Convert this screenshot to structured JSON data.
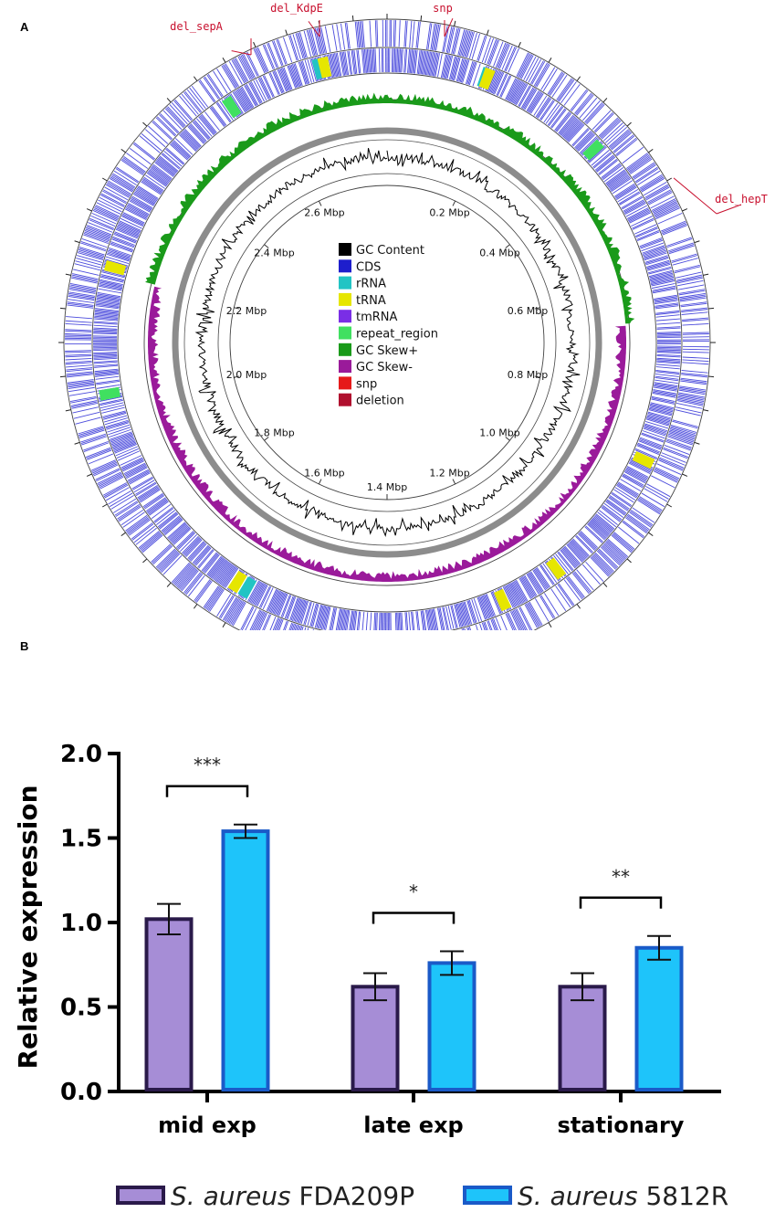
{
  "panel_a": {
    "label": "A",
    "ticks": [
      "0.2 Mbp",
      "0.4 Mbp",
      "0.6 Mbp",
      "0.8 Mbp",
      "1.0 Mbp",
      "1.2 Mbp",
      "1.4 Mbp",
      "1.6 Mbp",
      "1.8 Mbp",
      "2.0 Mbp",
      "2.2 Mbp",
      "2.4 Mbp",
      "2.6 Mbp"
    ],
    "annotations": [
      "del_sepA",
      "del_KdpE",
      "snp",
      "del_hepT"
    ],
    "legend": [
      {
        "label": "GC Content",
        "color": "#000000"
      },
      {
        "label": "CDS",
        "color": "#1e1ecc"
      },
      {
        "label": "rRNA",
        "color": "#22c4c4"
      },
      {
        "label": "tRNA",
        "color": "#e6e600"
      },
      {
        "label": "tmRNA",
        "color": "#7a2ee6"
      },
      {
        "label": "repeat_region",
        "color": "#40e060"
      },
      {
        "label": "GC Skew+",
        "color": "#1a9a1a"
      },
      {
        "label": "GC Skew-",
        "color": "#9a1a9a"
      },
      {
        "label": "snp",
        "color": "#e61a1a"
      },
      {
        "label": "deletion",
        "color": "#b0102e"
      }
    ]
  },
  "panel_b": {
    "label": "B",
    "chart_data": {
      "type": "bar",
      "categories": [
        "mid exp",
        "late exp",
        "stationary"
      ],
      "ylabel": "Relative expression",
      "ylim": [
        0,
        2.0
      ],
      "yticks": [
        "0.0",
        "0.5",
        "1.0",
        "1.5",
        "2.0"
      ],
      "series": [
        {
          "name_italic": "S. aureus",
          "name_rest": "FDA209P",
          "fill": "#a68dd6",
          "stroke": "#2a1a4a",
          "values": [
            1.02,
            0.62,
            0.62
          ],
          "errors": [
            0.09,
            0.08,
            0.08
          ]
        },
        {
          "name_italic": "S. aureus",
          "name_rest": "5812R",
          "fill": "#1ec4fa",
          "stroke": "#1a5ac8",
          "values": [
            1.54,
            0.76,
            0.85
          ],
          "errors": [
            0.04,
            0.07,
            0.07
          ]
        }
      ],
      "significance": [
        "***",
        "*",
        "**"
      ]
    }
  }
}
